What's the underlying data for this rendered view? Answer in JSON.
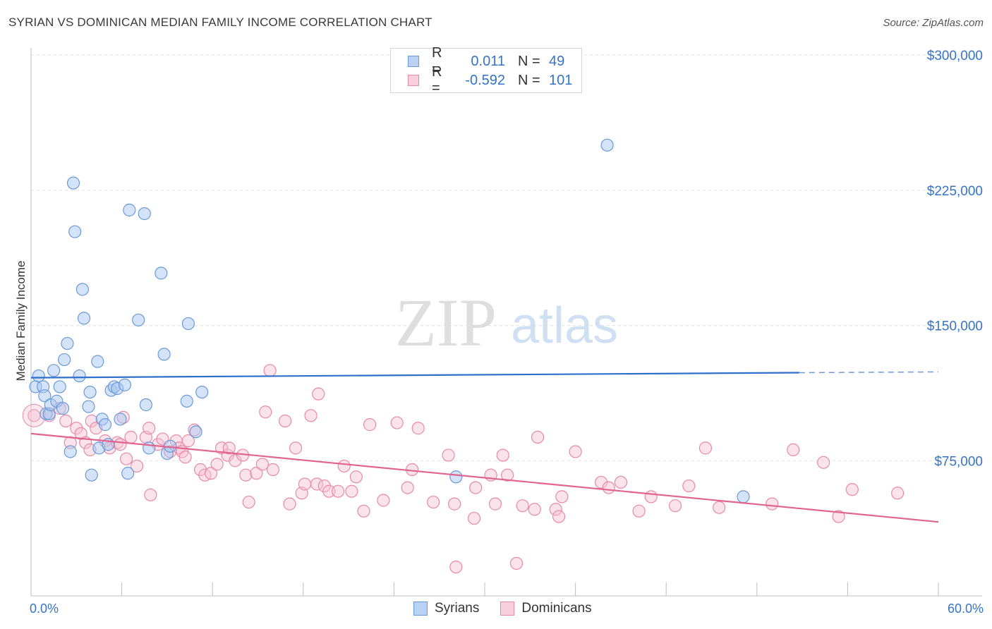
{
  "title": "SYRIAN VS DOMINICAN MEDIAN FAMILY INCOME CORRELATION CHART",
  "source": "Source: ZipAtlas.com",
  "watermark": {
    "zip": "ZIP",
    "atlas": "atlas"
  },
  "legend": {
    "rows": [
      {
        "r_label": "R =",
        "r_value": "0.011",
        "n_label": "N =",
        "n_value": "49"
      },
      {
        "r_label": "R =",
        "r_value": "-0.592",
        "n_label": "N =",
        "n_value": "101"
      }
    ]
  },
  "bottom_legend": {
    "syrians": "Syrians",
    "dominicans": "Dominicans"
  },
  "colors": {
    "syrians_fill": "#a9c8f0",
    "syrians_stroke": "#6a9ad8",
    "syrians_line": "#2e6fcc",
    "dominicans_fill": "#f6c0d2",
    "dominicans_stroke": "#e889a8",
    "dominicans_line": "#e0648f",
    "axis_label": "#3573c8"
  },
  "chart_data": {
    "type": "scatter",
    "title": "SYRIAN VS DOMINICAN MEDIAN FAMILY INCOME CORRELATION CHART",
    "xlabel": "",
    "ylabel": "Median Family Income",
    "xlim": [
      0,
      60
    ],
    "ylim": [
      0,
      315000
    ],
    "x_tick_labels": [
      "0.0%",
      "60.0%"
    ],
    "y_ticks": [
      75000,
      150000,
      225000,
      300000
    ],
    "y_tick_labels": [
      "$75,000",
      "$150,000",
      "$225,000",
      "$300,000"
    ],
    "series": [
      {
        "name": "Syrians",
        "r": 0.011,
        "n": 49,
        "trend": {
          "x0": 0,
          "y0": 121000,
          "x1": 50.8,
          "y1": 123800,
          "dash_to_x": 60,
          "dash_to_y": 124200
        },
        "points": [
          [
            0.3,
            116000
          ],
          [
            0.5,
            122000
          ],
          [
            0.8,
            116000
          ],
          [
            0.9,
            111000
          ],
          [
            1.0,
            101000
          ],
          [
            1.2,
            101000
          ],
          [
            1.3,
            106000
          ],
          [
            1.5,
            125000
          ],
          [
            1.7,
            108000
          ],
          [
            1.9,
            116000
          ],
          [
            2.1,
            104000
          ],
          [
            2.2,
            131000
          ],
          [
            2.4,
            140000
          ],
          [
            2.6,
            80000
          ],
          [
            2.8,
            229000
          ],
          [
            2.9,
            202000
          ],
          [
            3.2,
            122000
          ],
          [
            3.4,
            170000
          ],
          [
            3.5,
            154000
          ],
          [
            3.8,
            105000
          ],
          [
            3.9,
            113000
          ],
          [
            4.0,
            67000
          ],
          [
            4.4,
            130000
          ],
          [
            4.5,
            82000
          ],
          [
            4.7,
            98000
          ],
          [
            4.9,
            95000
          ],
          [
            5.1,
            84000
          ],
          [
            5.3,
            114000
          ],
          [
            5.5,
            116000
          ],
          [
            5.7,
            115000
          ],
          [
            5.9,
            98000
          ],
          [
            6.2,
            117000
          ],
          [
            6.4,
            68000
          ],
          [
            6.5,
            214000
          ],
          [
            7.1,
            153000
          ],
          [
            7.5,
            212000
          ],
          [
            7.6,
            106000
          ],
          [
            7.8,
            82000
          ],
          [
            8.6,
            179000
          ],
          [
            8.8,
            134000
          ],
          [
            9.0,
            79000
          ],
          [
            9.2,
            83000
          ],
          [
            10.3,
            108000
          ],
          [
            10.4,
            151000
          ],
          [
            10.9,
            91000
          ],
          [
            11.3,
            113000
          ],
          [
            28.1,
            66000
          ],
          [
            38.1,
            250000
          ],
          [
            47.1,
            55000
          ]
        ]
      },
      {
        "name": "Dominicans",
        "r": -0.592,
        "n": 101,
        "trend": {
          "x0": 0,
          "y0": 90000,
          "x1": 60,
          "y1": 41000
        },
        "points": [
          [
            0.2,
            100000
          ],
          [
            1.2,
            100000
          ],
          [
            1.9,
            104000
          ],
          [
            2.3,
            97000
          ],
          [
            2.6,
            85000
          ],
          [
            3.0,
            93000
          ],
          [
            3.3,
            90000
          ],
          [
            3.6,
            85000
          ],
          [
            3.9,
            81000
          ],
          [
            4.0,
            97000
          ],
          [
            4.3,
            93000
          ],
          [
            4.9,
            86000
          ],
          [
            5.2,
            82000
          ],
          [
            5.7,
            85000
          ],
          [
            5.9,
            84000
          ],
          [
            6.1,
            99000
          ],
          [
            6.3,
            76000
          ],
          [
            6.6,
            88000
          ],
          [
            7.0,
            72000
          ],
          [
            7.6,
            88000
          ],
          [
            7.8,
            93000
          ],
          [
            7.9,
            56000
          ],
          [
            8.4,
            84000
          ],
          [
            8.7,
            87000
          ],
          [
            9.2,
            80000
          ],
          [
            9.6,
            86000
          ],
          [
            9.8,
            82000
          ],
          [
            10.0,
            80000
          ],
          [
            10.4,
            86000
          ],
          [
            10.8,
            92000
          ],
          [
            10.2,
            77000
          ],
          [
            11.2,
            70000
          ],
          [
            11.5,
            67000
          ],
          [
            11.9,
            68000
          ],
          [
            12.3,
            73000
          ],
          [
            12.6,
            82000
          ],
          [
            13.0,
            78000
          ],
          [
            13.1,
            82000
          ],
          [
            13.5,
            75000
          ],
          [
            14.0,
            78000
          ],
          [
            14.2,
            67000
          ],
          [
            14.4,
            52000
          ],
          [
            14.9,
            68000
          ],
          [
            15.3,
            73000
          ],
          [
            15.5,
            102000
          ],
          [
            15.8,
            125000
          ],
          [
            16.0,
            70000
          ],
          [
            16.8,
            97000
          ],
          [
            17.1,
            51000
          ],
          [
            17.5,
            82000
          ],
          [
            17.9,
            57000
          ],
          [
            18.1,
            62000
          ],
          [
            18.5,
            100000
          ],
          [
            18.9,
            62000
          ],
          [
            19.0,
            112000
          ],
          [
            19.4,
            61000
          ],
          [
            19.7,
            58000
          ],
          [
            20.3,
            58000
          ],
          [
            20.7,
            72000
          ],
          [
            21.2,
            58000
          ],
          [
            21.5,
            66000
          ],
          [
            22.0,
            47000
          ],
          [
            22.4,
            95000
          ],
          [
            23.3,
            53000
          ],
          [
            24.2,
            96000
          ],
          [
            24.9,
            60000
          ],
          [
            25.2,
            70000
          ],
          [
            25.6,
            93000
          ],
          [
            26.6,
            52000
          ],
          [
            27.6,
            78000
          ],
          [
            28.0,
            51000
          ],
          [
            28.1,
            16000
          ],
          [
            29.3,
            43000
          ],
          [
            29.4,
            60000
          ],
          [
            30.4,
            67000
          ],
          [
            30.7,
            51000
          ],
          [
            31.2,
            78000
          ],
          [
            31.5,
            67000
          ],
          [
            32.1,
            18000
          ],
          [
            32.5,
            50000
          ],
          [
            33.3,
            48000
          ],
          [
            33.5,
            88000
          ],
          [
            34.7,
            48000
          ],
          [
            34.9,
            44000
          ],
          [
            35.1,
            55000
          ],
          [
            36.0,
            80000
          ],
          [
            37.7,
            63000
          ],
          [
            38.2,
            60000
          ],
          [
            39.0,
            63000
          ],
          [
            40.2,
            47000
          ],
          [
            41.0,
            55000
          ],
          [
            42.6,
            50000
          ],
          [
            43.5,
            61000
          ],
          [
            44.6,
            82000
          ],
          [
            45.5,
            49000
          ],
          [
            49.0,
            51000
          ],
          [
            50.4,
            81000
          ],
          [
            52.4,
            74000
          ],
          [
            53.4,
            44000
          ],
          [
            54.3,
            59000
          ],
          [
            57.3,
            57000
          ]
        ]
      }
    ]
  }
}
